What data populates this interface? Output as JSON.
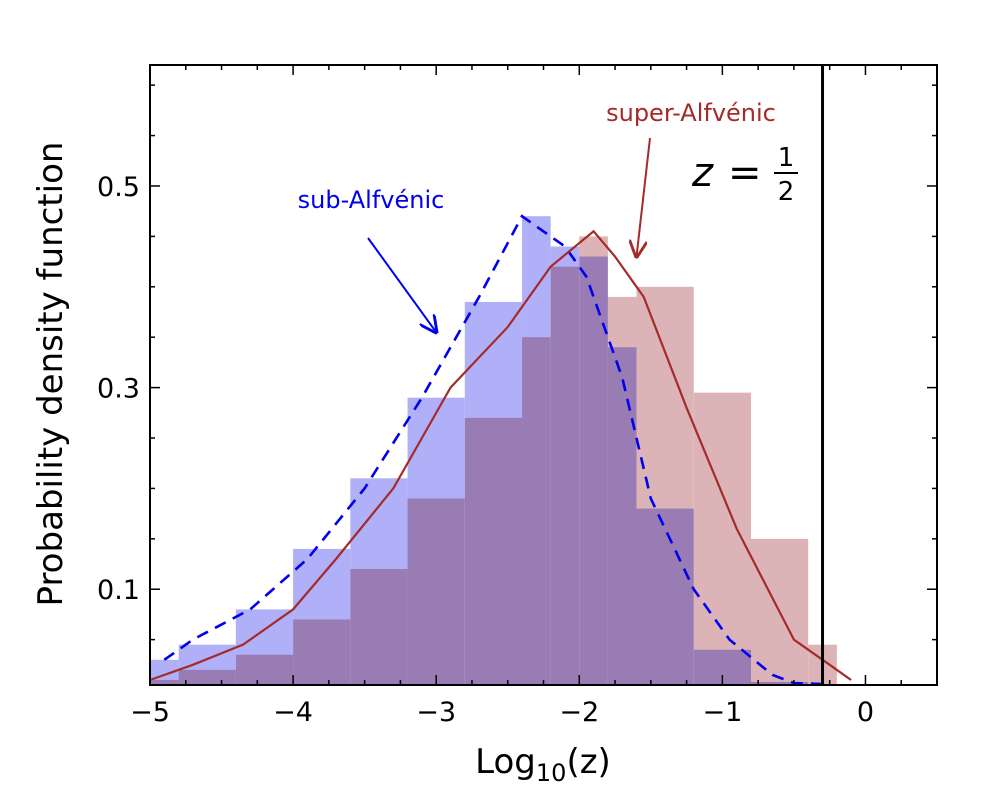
{
  "chart_data": {
    "type": "histogram",
    "xlabel_prefix": "Log",
    "xlabel_sub": "10",
    "xlabel_arg": "(z)",
    "ylabel": "Probability density function",
    "xlim": [
      -5,
      0.5
    ],
    "ylim": [
      0.005,
      0.62
    ],
    "xticks": [
      -5,
      -4,
      -3,
      -2,
      -1,
      0
    ],
    "xtick_labels": [
      "−5",
      "−4",
      "−3",
      "−2",
      "−1",
      "0"
    ],
    "yticks": [
      0.1,
      0.3,
      0.5
    ],
    "ytick_labels": [
      "0.1",
      "0.3",
      "0.5"
    ],
    "bin_edges": [
      -5.0,
      -4.8,
      -4.4,
      -4.0,
      -3.6,
      -3.2,
      -2.8,
      -2.4,
      -2.2,
      -2.0,
      -1.8,
      -1.6,
      -1.2,
      -0.8,
      -0.4,
      -0.2
    ],
    "series": [
      {
        "name": "sub-Alfvénic",
        "color": "#0000ee",
        "fill": "#b0b0f8",
        "hist": [
          0.03,
          0.045,
          0.08,
          0.14,
          0.21,
          0.29,
          0.385,
          0.47,
          0.44,
          0.43,
          0.34,
          0.18,
          0.04,
          0.008,
          0.0
        ],
        "curve_x": [
          -4.9,
          -4.7,
          -4.3,
          -3.9,
          -3.5,
          -3.1,
          -2.7,
          -2.4,
          -2.1,
          -1.95,
          -1.7,
          -1.5,
          -1.2,
          -0.95,
          -0.65,
          -0.5,
          -0.3
        ],
        "curve_y": [
          0.03,
          0.05,
          0.08,
          0.13,
          0.2,
          0.29,
          0.39,
          0.47,
          0.44,
          0.41,
          0.31,
          0.19,
          0.1,
          0.05,
          0.015,
          0.007,
          0.006
        ]
      },
      {
        "name": "super-Alfvénic",
        "color": "#a52a2a",
        "fill": "#dcb4b8",
        "hist": [
          0.01,
          0.02,
          0.035,
          0.07,
          0.12,
          0.19,
          0.27,
          0.35,
          0.42,
          0.45,
          0.39,
          0.4,
          0.295,
          0.15,
          0.045
        ],
        "curve_x": [
          -5.0,
          -4.7,
          -4.35,
          -4.0,
          -3.7,
          -3.3,
          -2.9,
          -2.5,
          -2.2,
          -1.9,
          -1.75,
          -1.55,
          -1.25,
          -0.9,
          -0.5,
          -0.25,
          -0.1
        ],
        "curve_y": [
          0.01,
          0.025,
          0.045,
          0.08,
          0.13,
          0.2,
          0.3,
          0.36,
          0.42,
          0.455,
          0.43,
          0.39,
          0.28,
          0.16,
          0.05,
          0.025,
          0.01
        ]
      }
    ],
    "vline": {
      "x": -0.3,
      "label_var": "z",
      "label_eq": "=",
      "label_num": "1",
      "label_den": "2"
    },
    "annotations": [
      {
        "text": "sub-Alfvénic",
        "color": "#0000ee",
        "target": [
          -3.0,
          0.355
        ]
      },
      {
        "text": "super-Alfvénic",
        "color": "#a52a2a",
        "target": [
          -1.6,
          0.43
        ]
      }
    ]
  }
}
